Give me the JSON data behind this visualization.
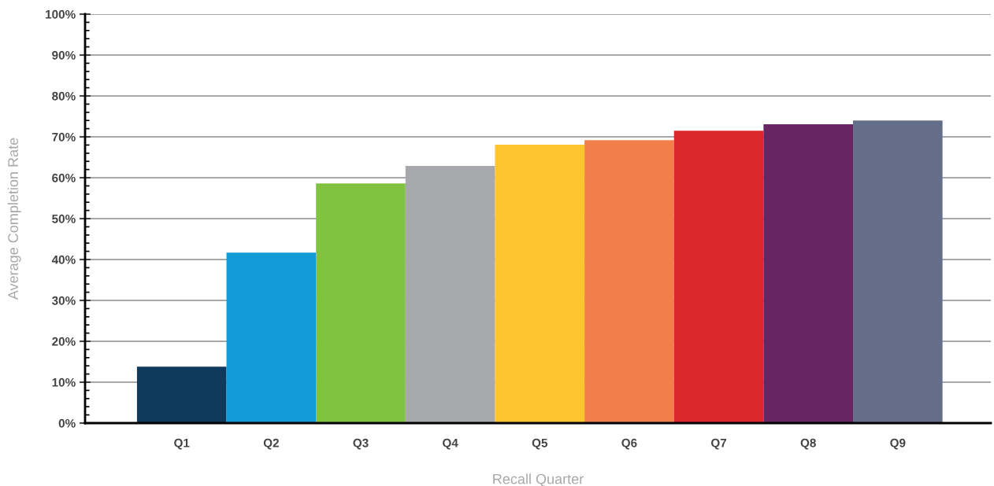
{
  "chart_data": {
    "type": "bar",
    "xlabel": "Recall Quarter",
    "ylabel": "Average Completion Rate",
    "categories": [
      "Q1",
      "Q2",
      "Q3",
      "Q4",
      "Q5",
      "Q6",
      "Q7",
      "Q8",
      "Q9"
    ],
    "values": [
      13.8,
      41.7,
      58.6,
      62.9,
      68.1,
      69.2,
      71.5,
      73.1,
      74.0
    ],
    "colors": [
      "#0f3a5c",
      "#129bd6",
      "#82c242",
      "#a7a8ab",
      "#fdc530",
      "#f27f49",
      "#db272d",
      "#672563",
      "#646e89"
    ],
    "ylim": [
      0,
      100
    ],
    "yticks": [
      {
        "value": 0,
        "label": "0%"
      },
      {
        "value": 10,
        "label": "10%"
      },
      {
        "value": 20,
        "label": "20%"
      },
      {
        "value": 30,
        "label": "30%"
      },
      {
        "value": 40,
        "label": "40%"
      },
      {
        "value": 50,
        "label": "50%"
      },
      {
        "value": 60,
        "label": "60%"
      },
      {
        "value": 70,
        "label": "70%"
      },
      {
        "value": 80,
        "label": "80%"
      },
      {
        "value": 90,
        "label": "90%"
      },
      {
        "value": 100,
        "label": "100%"
      }
    ],
    "grid": "y"
  }
}
